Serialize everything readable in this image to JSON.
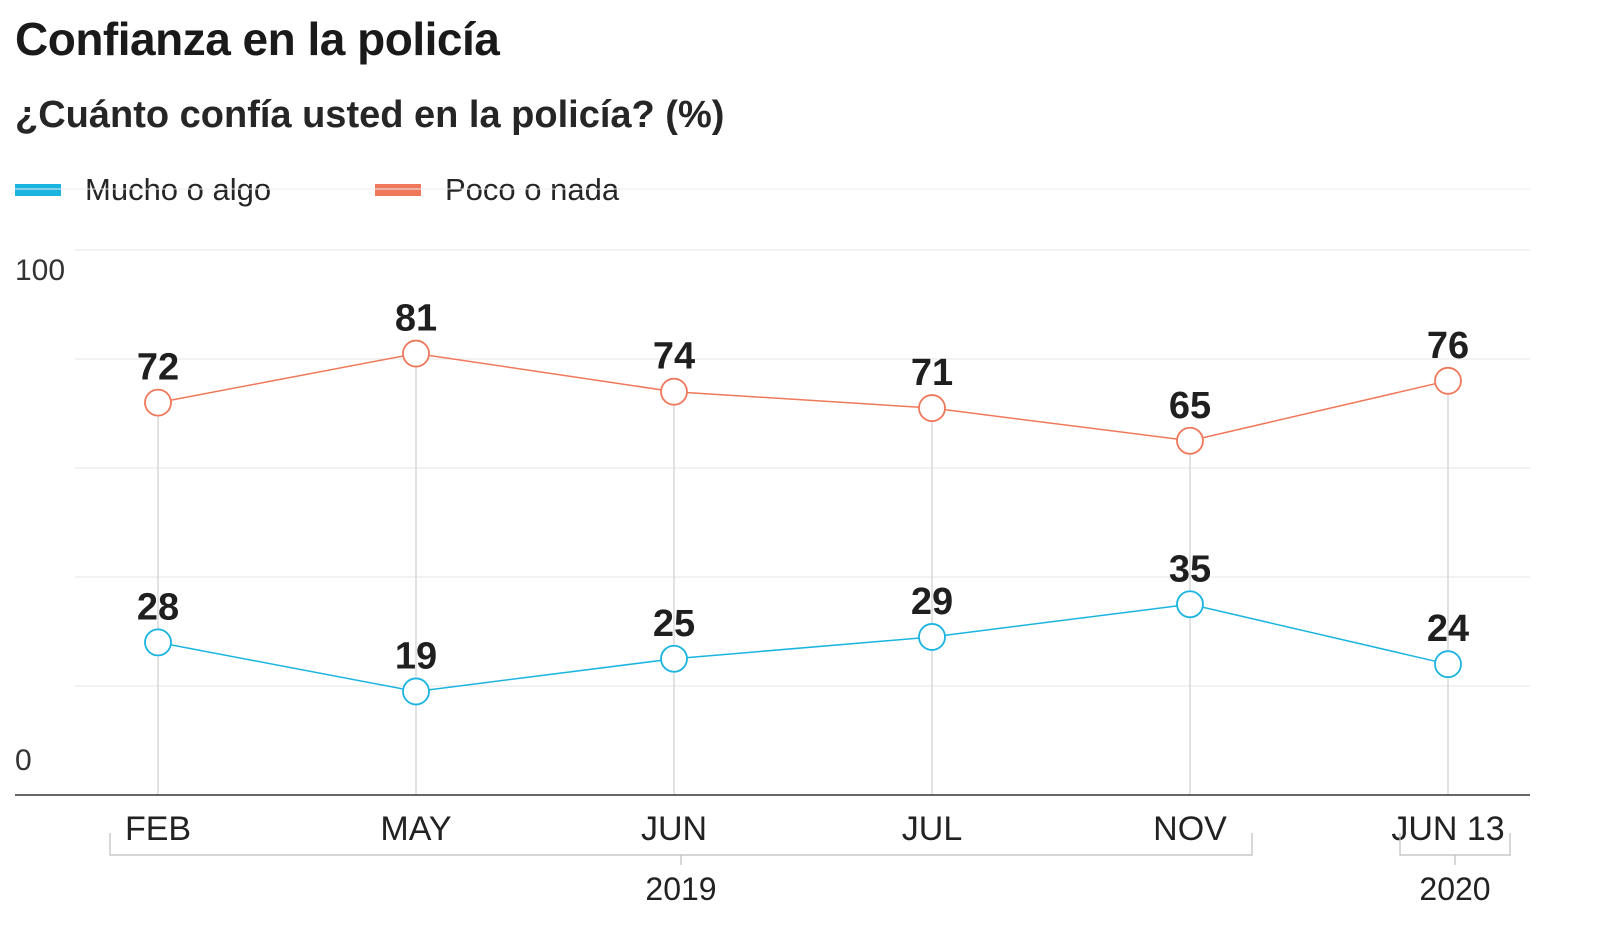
{
  "title": "Confianza en la policía",
  "subtitle": "¿Cuánto confía usted en la policía? (%)",
  "legend": [
    {
      "label": "Mucho o algo",
      "color": "#1ab4e0"
    },
    {
      "label": "Poco o nada",
      "color": "#f0785a"
    }
  ],
  "chart_data": {
    "type": "line",
    "categories": [
      "FEB",
      "MAY",
      "JUN",
      "JUL",
      "NOV",
      "JUN 13"
    ],
    "year_groups": [
      {
        "label": "2019",
        "from": 0,
        "to": 4
      },
      {
        "label": "2020",
        "from": 5,
        "to": 5
      }
    ],
    "series": [
      {
        "name": "Mucho o algo",
        "color": "#1ab4e0",
        "values": [
          28,
          19,
          25,
          29,
          35,
          24
        ]
      },
      {
        "name": "Poco o nada",
        "color": "#f0785a",
        "values": [
          72,
          81,
          74,
          71,
          65,
          76
        ]
      }
    ],
    "ylim": [
      0,
      100
    ],
    "y_tick_labels": [
      "0",
      "100"
    ],
    "grid": true,
    "legend_position": "top-left"
  }
}
